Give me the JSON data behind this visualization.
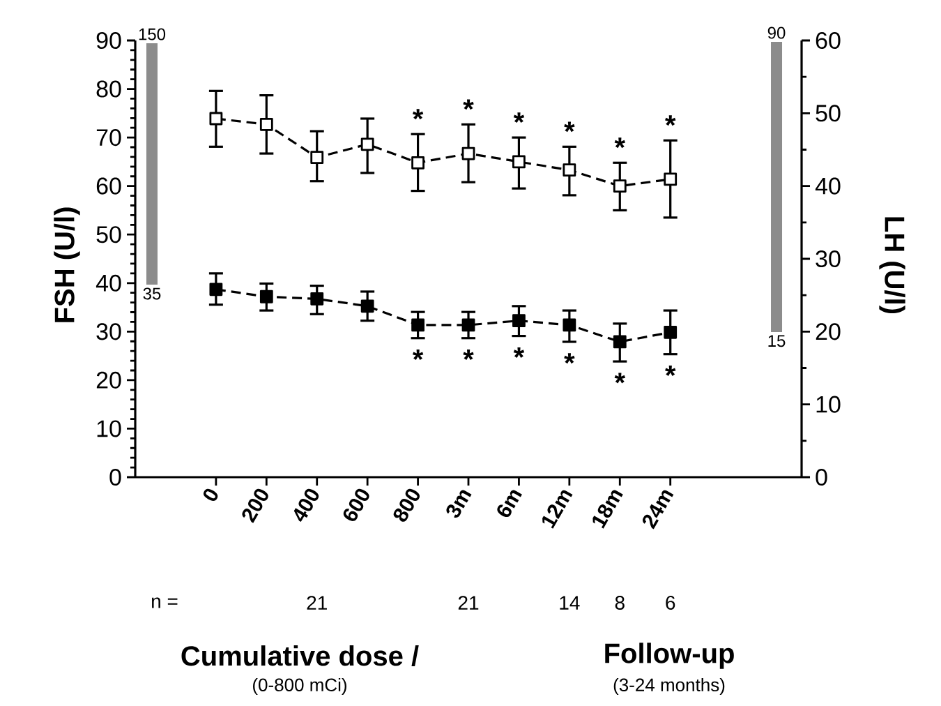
{
  "chart_data": {
    "type": "line",
    "ylabel": "FSH (U/l)",
    "y2label": "LH (U/l)",
    "categories": [
      "0",
      "200",
      "400",
      "600",
      "800",
      "3m",
      "6m",
      "12m",
      "18m",
      "24m"
    ],
    "ylim": [
      0,
      90
    ],
    "yticks": [
      0,
      10,
      20,
      30,
      40,
      50,
      60,
      70,
      80,
      90
    ],
    "y2lim": [
      0,
      60
    ],
    "y2ticks": [
      0,
      10,
      20,
      30,
      40,
      50,
      60
    ],
    "marker": "square",
    "line_style": "dashed",
    "series": [
      {
        "color": "#000000",
        "values": [
          73.9,
          72.7,
          65.9,
          68.6,
          64.8,
          66.7,
          65.0,
          63.3,
          60.0,
          61.4
        ],
        "errors": [
          [
            68.1,
            79.6
          ],
          [
            66.7,
            78.7
          ],
          [
            61.0,
            71.3
          ],
          [
            62.7,
            73.9
          ],
          [
            59.0,
            70.7
          ],
          [
            60.8,
            72.7
          ],
          [
            59.5,
            70.0
          ],
          [
            58.1,
            68.1
          ],
          [
            55.0,
            64.8
          ],
          [
            53.5,
            69.4
          ]
        ]
      },
      {
        "color": "#000000",
        "axis": "y2",
        "values": [
          25.8,
          24.8,
          24.5,
          23.5,
          20.9,
          20.9,
          21.5,
          20.9,
          18.6,
          19.9
        ],
        "errors": [
          [
            23.7,
            28.0
          ],
          [
            22.9,
            26.6
          ],
          [
            22.4,
            26.3
          ],
          [
            21.5,
            25.5
          ],
          [
            19.1,
            22.7
          ],
          [
            19.1,
            22.7
          ],
          [
            19.4,
            23.5
          ],
          [
            18.6,
            22.9
          ],
          [
            15.9,
            21.1
          ],
          [
            16.9,
            22.9
          ]
        ]
      }
    ],
    "annotations": [
      "150",
      "35",
      "90",
      "15",
      "n =",
      "Cumulative dose /",
      "(0-800 mCi)",
      "Follow-up",
      "(3-24 months)",
      "21",
      "21",
      "14",
      "8",
      "6",
      "*",
      "*",
      "*",
      "*",
      "*",
      "*",
      "*",
      "*",
      "*",
      "*",
      "*",
      "*"
    ]
  }
}
